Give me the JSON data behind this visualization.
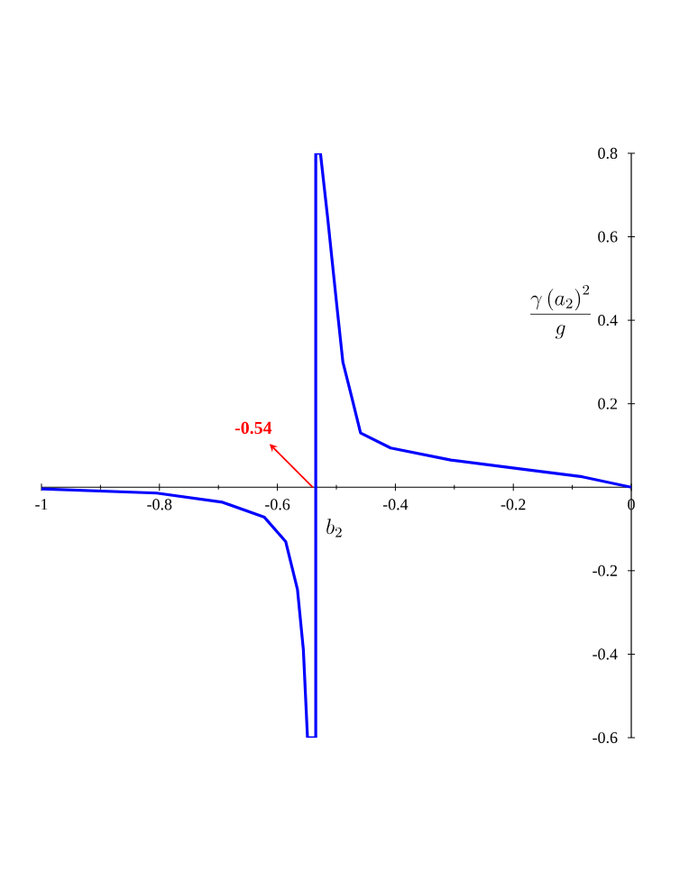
{
  "chart_data": {
    "type": "line",
    "xlabel": "b_{2}",
    "ylabel": "\\frac{\\gamma\\left(a_{2}\\right)^{2}}{g}",
    "xlim": [
      -1,
      0
    ],
    "ylim": [
      -0.6,
      0.8
    ],
    "xticks": [
      -1,
      -0.8,
      -0.6,
      -0.4,
      -0.2,
      0
    ],
    "yticks": [
      -0.6,
      -0.4,
      -0.2,
      0.2,
      0.4,
      0.6,
      0.8
    ],
    "annotations": [
      {
        "text": "-0.54",
        "x": -0.54,
        "y": 0
      }
    ],
    "series": [
      {
        "color": "#0000ff",
        "x": [
          -1,
          -0.805,
          -0.693,
          -0.622,
          -0.586,
          -0.566,
          -0.556,
          -0.549,
          -0.535,
          -0.535,
          -0.527,
          -0.515,
          -0.499,
          -0.489,
          -0.474,
          -0.459,
          -0.408,
          -0.306,
          -0.183,
          -0.083,
          0
        ],
        "values": [
          -0.004,
          -0.014,
          -0.036,
          -0.072,
          -0.13,
          -0.245,
          -0.389,
          -0.6,
          -0.6,
          0.8,
          0.8,
          0.648,
          0.432,
          0.3,
          0.216,
          0.13,
          0.094,
          0.065,
          0.043,
          0.025,
          0
        ]
      }
    ]
  }
}
